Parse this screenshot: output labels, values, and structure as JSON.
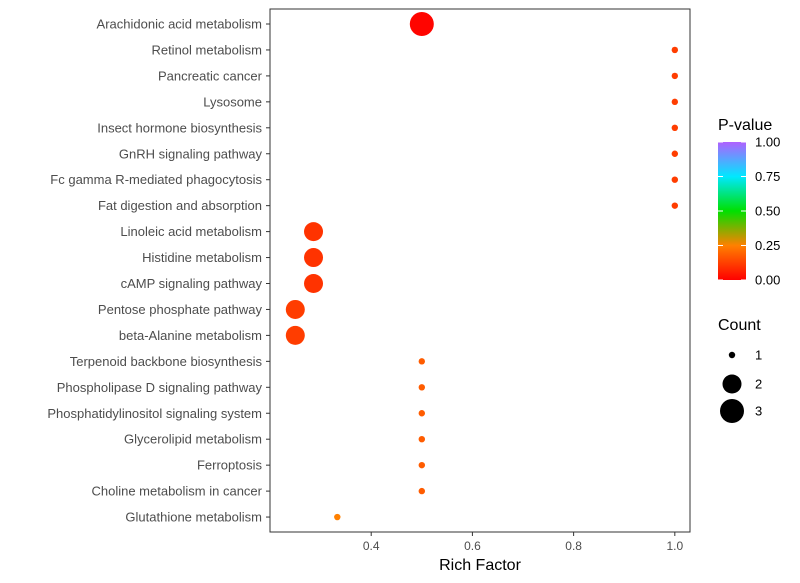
{
  "chart_data": {
    "type": "scatter",
    "xlabel": "Rich Factor",
    "ylabel": "",
    "xlim": [
      0.2,
      1.03
    ],
    "xticks": [
      "0.4",
      "0.6",
      "0.8",
      "1.0"
    ],
    "xtick_values": [
      0.4,
      0.6,
      0.8,
      1.0
    ],
    "grid": false,
    "categories": [
      "Arachidonic acid metabolism",
      "Retinol metabolism",
      "Pancreatic cancer",
      "Lysosome",
      "Insect hormone biosynthesis",
      "GnRH signaling pathway",
      "Fc gamma R-mediated phagocytosis",
      "Fat digestion and absorption",
      "Linoleic acid metabolism",
      "Histidine metabolism",
      "cAMP signaling pathway",
      "Pentose phosphate pathway",
      "beta-Alanine metabolism",
      "Terpenoid backbone biosynthesis",
      "Phospholipase D signaling pathway",
      "Phosphatidylinositol signaling system",
      "Glycerolipid metabolism",
      "Ferroptosis",
      "Choline metabolism in cancer",
      "Glutathione metabolism"
    ],
    "points": [
      {
        "pathway": "Arachidonic acid metabolism",
        "rich_factor": 0.5,
        "count": 3,
        "p_value": 0.01
      },
      {
        "pathway": "Retinol metabolism",
        "rich_factor": 1.0,
        "count": 1,
        "p_value": 0.12
      },
      {
        "pathway": "Pancreatic cancer",
        "rich_factor": 1.0,
        "count": 1,
        "p_value": 0.12
      },
      {
        "pathway": "Lysosome",
        "rich_factor": 1.0,
        "count": 1,
        "p_value": 0.12
      },
      {
        "pathway": "Insect hormone biosynthesis",
        "rich_factor": 1.0,
        "count": 1,
        "p_value": 0.12
      },
      {
        "pathway": "GnRH signaling pathway",
        "rich_factor": 1.0,
        "count": 1,
        "p_value": 0.12
      },
      {
        "pathway": "Fc gamma R-mediated phagocytosis",
        "rich_factor": 1.0,
        "count": 1,
        "p_value": 0.12
      },
      {
        "pathway": "Fat digestion and absorption",
        "rich_factor": 1.0,
        "count": 1,
        "p_value": 0.12
      },
      {
        "pathway": "Linoleic acid metabolism",
        "rich_factor": 0.286,
        "count": 2,
        "p_value": 0.1
      },
      {
        "pathway": "Histidine metabolism",
        "rich_factor": 0.286,
        "count": 2,
        "p_value": 0.1
      },
      {
        "pathway": "cAMP signaling pathway",
        "rich_factor": 0.286,
        "count": 2,
        "p_value": 0.1
      },
      {
        "pathway": "Pentose phosphate pathway",
        "rich_factor": 0.25,
        "count": 2,
        "p_value": 0.12
      },
      {
        "pathway": "beta-Alanine metabolism",
        "rich_factor": 0.25,
        "count": 2,
        "p_value": 0.12
      },
      {
        "pathway": "Terpenoid backbone biosynthesis",
        "rich_factor": 0.5,
        "count": 1,
        "p_value": 0.18
      },
      {
        "pathway": "Phospholipase D signaling pathway",
        "rich_factor": 0.5,
        "count": 1,
        "p_value": 0.18
      },
      {
        "pathway": "Phosphatidylinositol signaling system",
        "rich_factor": 0.5,
        "count": 1,
        "p_value": 0.18
      },
      {
        "pathway": "Glycerolipid metabolism",
        "rich_factor": 0.5,
        "count": 1,
        "p_value": 0.18
      },
      {
        "pathway": "Ferroptosis",
        "rich_factor": 0.5,
        "count": 1,
        "p_value": 0.18
      },
      {
        "pathway": "Choline metabolism in cancer",
        "rich_factor": 0.5,
        "count": 1,
        "p_value": 0.18
      },
      {
        "pathway": "Glutathione metabolism",
        "rich_factor": 0.333,
        "count": 1,
        "p_value": 0.25
      }
    ],
    "color_legend": {
      "title": "P-value",
      "ticks": [
        "1.00",
        "0.75",
        "0.50",
        "0.25",
        "0.00"
      ],
      "tick_values": [
        1.0,
        0.75,
        0.5,
        0.25,
        0.0
      ],
      "range": [
        0,
        1
      ],
      "colors": [
        "#ff0000",
        "#ff8000",
        "#00e000",
        "#00e8ff",
        "#b060ff"
      ]
    },
    "size_legend": {
      "title": "Count",
      "values": [
        1,
        2,
        3
      ],
      "labels": [
        "1",
        "2",
        "3"
      ]
    },
    "legend_position": "right"
  }
}
